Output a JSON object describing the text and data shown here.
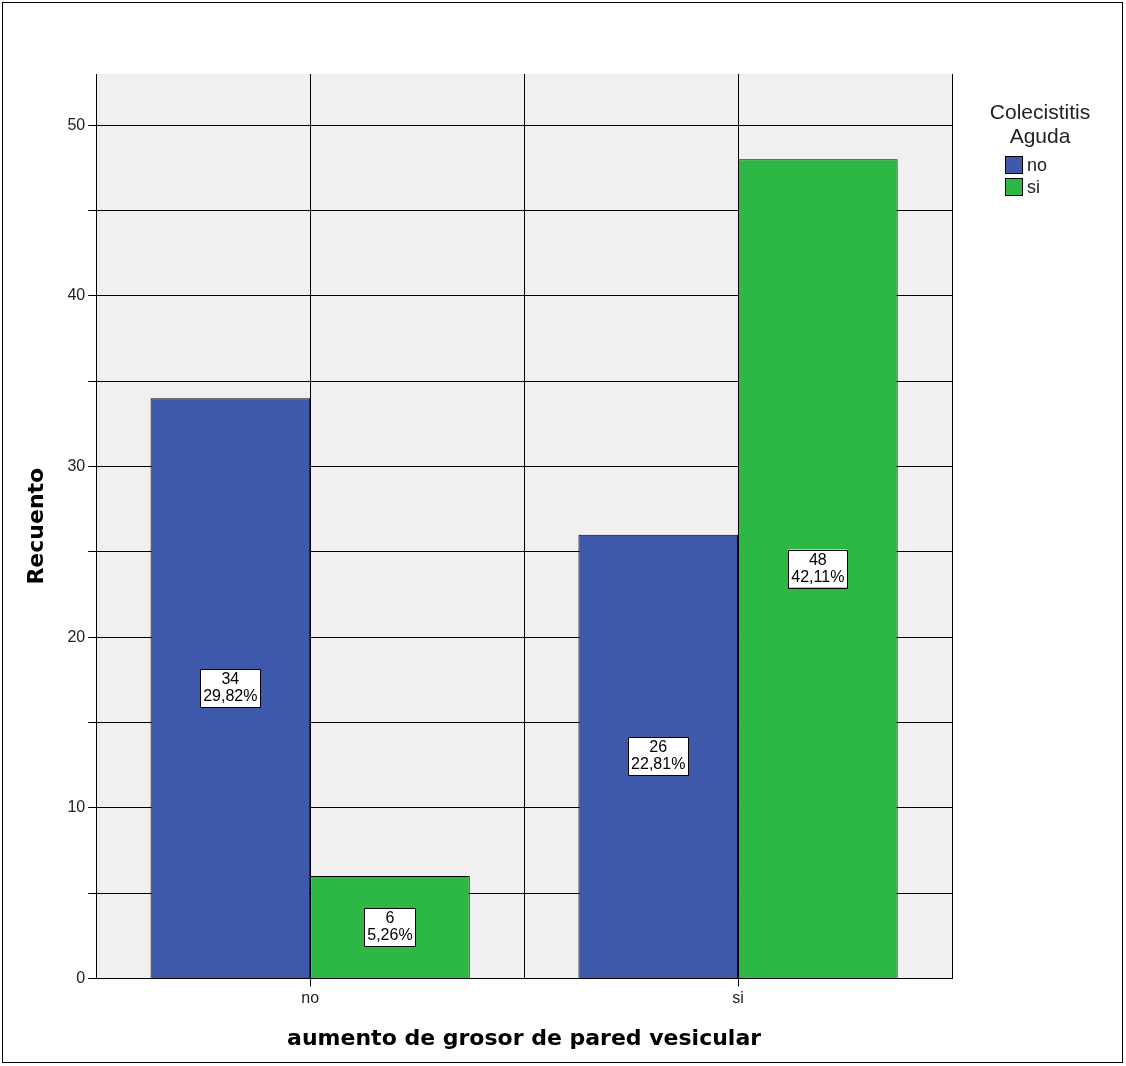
{
  "chart_data": {
    "type": "bar",
    "xlabel": "aumento de grosor de pared vesicular",
    "ylabel": "Recuento",
    "legend_title": "Colecistitis Aguda",
    "categories": [
      "no",
      "si"
    ],
    "series": [
      {
        "name": "no",
        "color": "#3e58ac",
        "values": [
          34,
          26
        ],
        "value_labels": [
          "34\n29,82%",
          "26\n22,81%"
        ]
      },
      {
        "name": "si",
        "color": "#2db846",
        "values": [
          6,
          48
        ],
        "value_labels": [
          "6\n5,26%",
          "48\n42,11%"
        ]
      }
    ],
    "ylim": [
      0,
      53
    ],
    "yticks": [
      0,
      {
        "value": 5,
        "label": null
      },
      10,
      {
        "value": 15,
        "label": null
      },
      20,
      {
        "value": 25,
        "label": null
      },
      30,
      {
        "value": 35,
        "label": null
      },
      40,
      {
        "value": 45,
        "label": null
      },
      50
    ],
    "grid": true,
    "legend": "top right"
  }
}
